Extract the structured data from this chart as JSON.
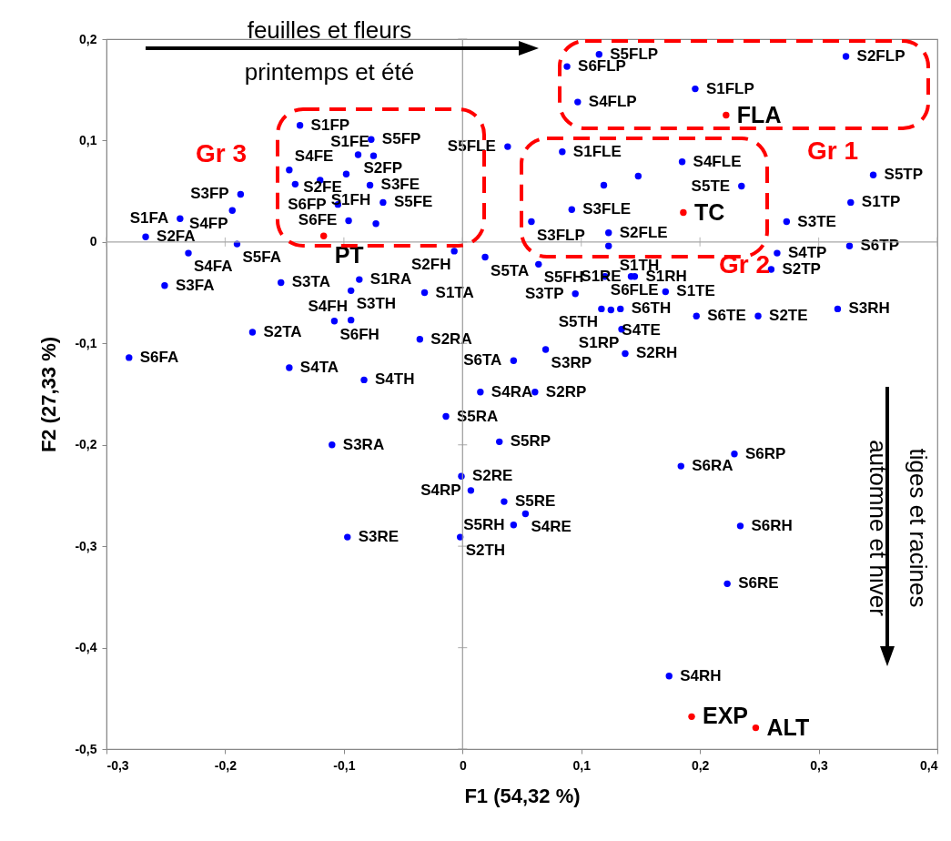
{
  "chart_data": {
    "type": "scatter",
    "xlabel": "F1 (54,32 %)",
    "ylabel": "F2 (27,33 %)",
    "xlim": [
      -0.3,
      0.4
    ],
    "ylim": [
      -0.5,
      0.2
    ],
    "xticks": [
      {
        "value": -0.3,
        "label": "-0,3"
      },
      {
        "value": -0.2,
        "label": "-0,2"
      },
      {
        "value": -0.1,
        "label": "-0,1"
      },
      0,
      {
        "value": 0.1,
        "label": "0,1"
      },
      {
        "value": 0.2,
        "label": "0,2"
      },
      {
        "value": 0.3,
        "label": "0,3"
      },
      {
        "value": 0.4,
        "label": "0,4"
      }
    ],
    "yticks": [
      {
        "value": -0.5,
        "label": "-0,5"
      },
      {
        "value": -0.4,
        "label": "-0,4"
      },
      {
        "value": -0.3,
        "label": "-0,3"
      },
      {
        "value": -0.2,
        "label": "-0,2"
      },
      {
        "value": -0.1,
        "label": "-0,1"
      },
      0,
      {
        "value": 0.1,
        "label": "0,1"
      },
      {
        "value": 0.2,
        "label": "0,2"
      }
    ],
    "grid": false,
    "marker": "circle",
    "ref_lines": [
      {
        "axis": "x",
        "value": 0,
        "color": "#999999"
      },
      {
        "axis": "y",
        "value": 0,
        "color": "#a6a6a6"
      }
    ],
    "annotations": [
      "feuilles et fleurs",
      "printemps et été",
      "Gr 3",
      "Gr 1",
      "Gr 2",
      "tiges et racines",
      "automne et hiver"
    ],
    "series": [
      {
        "color": "#0000ff",
        "x": [
          -0.137,
          -0.077,
          -0.088,
          -0.075,
          -0.146,
          -0.098,
          -0.078,
          -0.12,
          -0.141,
          -0.187,
          -0.194,
          -0.238,
          -0.105,
          -0.067,
          -0.096,
          -0.073,
          -0.267,
          -0.231,
          -0.19,
          0.088,
          0.115,
          0.323,
          0.196,
          0.097,
          0.038,
          0.084,
          0.185,
          0.148,
          0.119,
          0.235,
          0.346,
          0.327,
          0.092,
          0.058,
          0.273,
          0.123,
          0.123,
          0.265,
          0.326,
          -0.007,
          0.019,
          0.064,
          0.12,
          0.142,
          0.145,
          0.095,
          0.171,
          0.117,
          0.133,
          0.125,
          0.197,
          0.249,
          0.316,
          0.134,
          0.07,
          0.137,
          0.043,
          0.015,
          0.061,
          -0.014,
          0.031,
          0.184,
          0.229,
          -0.001,
          0.007,
          0.035,
          0.053,
          0.043,
          -0.097,
          -0.002,
          0.234,
          0.223,
          0.174,
          -0.251,
          -0.153,
          -0.087,
          -0.036,
          -0.094,
          -0.032,
          -0.177,
          -0.108,
          -0.094,
          -0.281,
          -0.146,
          -0.083,
          -0.11,
          0.26
        ],
        "values": [
          0.115,
          0.101,
          0.086,
          0.085,
          0.071,
          0.067,
          0.056,
          0.061,
          0.057,
          0.047,
          0.031,
          0.023,
          0.037,
          0.039,
          0.021,
          0.018,
          0.005,
          -0.011,
          -0.002,
          0.173,
          0.185,
          0.183,
          0.151,
          0.138,
          0.094,
          0.089,
          0.079,
          0.065,
          0.056,
          0.055,
          0.066,
          0.039,
          0.032,
          0.02,
          0.02,
          0.009,
          -0.004,
          -0.011,
          -0.004,
          -0.009,
          -0.015,
          -0.022,
          -0.034,
          -0.034,
          -0.034,
          -0.051,
          -0.049,
          -0.066,
          -0.066,
          -0.067,
          -0.073,
          -0.073,
          -0.066,
          -0.086,
          -0.106,
          -0.11,
          -0.117,
          -0.148,
          -0.148,
          -0.172,
          -0.197,
          -0.221,
          -0.209,
          -0.231,
          -0.245,
          -0.256,
          -0.268,
          -0.279,
          -0.291,
          -0.291,
          -0.28,
          -0.337,
          -0.428,
          -0.043,
          -0.04,
          -0.037,
          -0.096,
          -0.048,
          -0.05,
          -0.089,
          -0.078,
          -0.077,
          -0.114,
          -0.124,
          -0.136,
          -0.2,
          -0.027
        ],
        "value_labels": [
          "S1FP",
          "S5FP",
          "S2FP",
          "S1FE",
          "S4FE",
          "S2FE",
          "S3FE",
          "S1FH",
          null,
          "S3FP",
          "S4FP",
          "S1FA",
          "S6FP",
          "S5FE",
          "S6FE",
          null,
          "S2FA",
          "S4FA",
          "S5FA",
          "S6FLP",
          "S5FLP",
          "S2FLP",
          "S1FLP",
          "S4FLP",
          "S5FLE",
          "S1FLE",
          "S4FLE",
          null,
          null,
          "S5TE",
          "S5TP",
          "S1TP",
          "S3FLE",
          "S3FLP",
          "S3TE",
          "S2FLE",
          "S1TH",
          "S4TP",
          "S6TP",
          "S2FH",
          "S5TA",
          "S5FH",
          "S6FLE",
          "S1RE",
          "S1RH",
          "S3TP",
          "S1TE",
          "S5TH",
          "S6TH",
          "S4TE",
          "S6TE",
          "S2TE",
          "S3RH",
          "S1RP",
          "S3RP",
          "S2RH",
          "S6TA",
          "S4RA",
          "S2RP",
          "S5RA",
          "S5RP",
          "S6RA",
          "S6RP",
          "S2RE",
          "S4RP",
          "S5RE",
          "S4RE",
          "S5RH",
          "S3RE",
          "S2TH",
          "S6RH",
          "S6RE",
          "S4RH",
          "S3FA",
          "S3TA",
          "S1RA",
          "S2RA",
          "S3TH",
          "S1TA",
          "S2TA",
          "S6FH",
          "S4FH",
          "S6FA",
          "S4TA",
          "S4TH",
          "S3RA",
          "S2TP"
        ]
      },
      {
        "color": "#ff0000",
        "x": [
          -0.117,
          0.186,
          0.222,
          0.193,
          0.247
        ],
        "values": [
          0.006,
          0.029,
          0.125,
          -0.468,
          -0.479
        ],
        "value_labels": [
          "PT",
          "TC",
          "FLA",
          "EXP",
          "ALT"
        ]
      }
    ]
  }
}
